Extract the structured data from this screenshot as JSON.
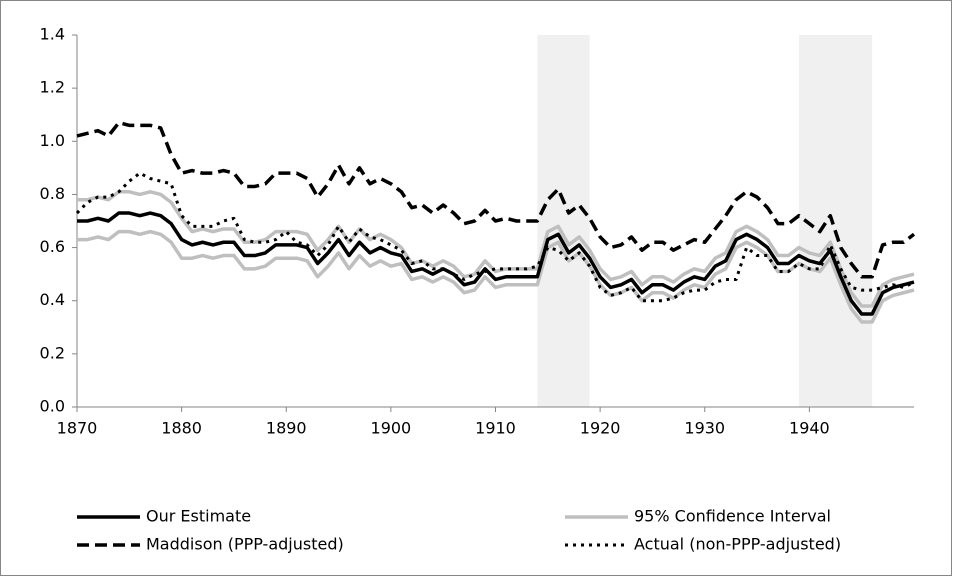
{
  "chart_data": {
    "type": "line",
    "x": [
      1870,
      1871,
      1872,
      1873,
      1874,
      1875,
      1876,
      1877,
      1878,
      1879,
      1880,
      1881,
      1882,
      1883,
      1884,
      1885,
      1886,
      1887,
      1888,
      1889,
      1890,
      1891,
      1892,
      1893,
      1894,
      1895,
      1896,
      1897,
      1898,
      1899,
      1900,
      1901,
      1902,
      1903,
      1904,
      1905,
      1906,
      1907,
      1908,
      1909,
      1910,
      1911,
      1912,
      1913,
      1914,
      1915,
      1916,
      1917,
      1918,
      1919,
      1920,
      1921,
      1922,
      1923,
      1924,
      1925,
      1926,
      1927,
      1928,
      1929,
      1930,
      1931,
      1932,
      1933,
      1934,
      1935,
      1936,
      1937,
      1938,
      1939,
      1940,
      1941,
      1942,
      1943,
      1944,
      1945,
      1946,
      1947,
      1948,
      1949,
      1950
    ],
    "series": [
      {
        "name": "95% Confidence Interval",
        "color": "#bfbfbf",
        "dash": "solid",
        "values": [
          0.78,
          0.78,
          0.79,
          0.78,
          0.81,
          0.81,
          0.8,
          0.81,
          0.8,
          0.77,
          0.71,
          0.66,
          0.67,
          0.66,
          0.67,
          0.67,
          0.62,
          0.62,
          0.63,
          0.66,
          0.66,
          0.66,
          0.65,
          0.59,
          0.63,
          0.68,
          0.62,
          0.67,
          0.63,
          0.65,
          0.63,
          0.6,
          0.54,
          0.55,
          0.53,
          0.55,
          0.53,
          0.49,
          0.5,
          0.55,
          0.51,
          0.52,
          0.52,
          0.52,
          0.52,
          0.66,
          0.68,
          0.61,
          0.64,
          0.59,
          0.52,
          0.48,
          0.49,
          0.51,
          0.46,
          0.49,
          0.49,
          0.47,
          0.5,
          0.52,
          0.51,
          0.56,
          0.58,
          0.66,
          0.68,
          0.66,
          0.63,
          0.57,
          0.57,
          0.6,
          0.58,
          0.57,
          0.62,
          0.52,
          0.43,
          0.38,
          0.38,
          0.46,
          0.48,
          0.49,
          0.5
        ],
        "lower": [
          0.63,
          0.63,
          0.64,
          0.63,
          0.66,
          0.66,
          0.65,
          0.66,
          0.65,
          0.62,
          0.56,
          0.56,
          0.57,
          0.56,
          0.57,
          0.57,
          0.52,
          0.52,
          0.53,
          0.56,
          0.56,
          0.56,
          0.55,
          0.49,
          0.53,
          0.58,
          0.52,
          0.57,
          0.53,
          0.55,
          0.53,
          0.54,
          0.48,
          0.49,
          0.47,
          0.49,
          0.47,
          0.43,
          0.44,
          0.49,
          0.45,
          0.46,
          0.46,
          0.46,
          0.46,
          0.6,
          0.62,
          0.55,
          0.58,
          0.53,
          0.46,
          0.42,
          0.43,
          0.45,
          0.4,
          0.43,
          0.43,
          0.41,
          0.44,
          0.46,
          0.45,
          0.5,
          0.52,
          0.6,
          0.62,
          0.6,
          0.57,
          0.51,
          0.51,
          0.54,
          0.52,
          0.51,
          0.56,
          0.46,
          0.37,
          0.32,
          0.32,
          0.4,
          0.42,
          0.43,
          0.44
        ]
      },
      {
        "name": "Our Estimate",
        "color": "#000000",
        "dash": "solid",
        "values": [
          0.7,
          0.7,
          0.71,
          0.7,
          0.73,
          0.73,
          0.72,
          0.73,
          0.72,
          0.69,
          0.63,
          0.61,
          0.62,
          0.61,
          0.62,
          0.62,
          0.57,
          0.57,
          0.58,
          0.61,
          0.61,
          0.61,
          0.6,
          0.54,
          0.58,
          0.63,
          0.57,
          0.62,
          0.58,
          0.6,
          0.58,
          0.57,
          0.51,
          0.52,
          0.5,
          0.52,
          0.5,
          0.46,
          0.47,
          0.52,
          0.48,
          0.49,
          0.49,
          0.49,
          0.49,
          0.63,
          0.65,
          0.58,
          0.61,
          0.56,
          0.49,
          0.45,
          0.46,
          0.48,
          0.43,
          0.46,
          0.46,
          0.44,
          0.47,
          0.49,
          0.48,
          0.53,
          0.55,
          0.63,
          0.65,
          0.63,
          0.6,
          0.54,
          0.54,
          0.57,
          0.55,
          0.54,
          0.59,
          0.49,
          0.4,
          0.35,
          0.35,
          0.43,
          0.45,
          0.46,
          0.47
        ]
      },
      {
        "name": "Maddison (PPP-adjusted)",
        "color": "#000000",
        "dash": "dashed",
        "values": [
          1.02,
          1.03,
          1.04,
          1.02,
          1.07,
          1.06,
          1.06,
          1.06,
          1.05,
          0.95,
          0.88,
          0.89,
          0.88,
          0.88,
          0.89,
          0.88,
          0.83,
          0.83,
          0.84,
          0.88,
          0.88,
          0.88,
          0.86,
          0.79,
          0.84,
          0.91,
          0.84,
          0.9,
          0.84,
          0.86,
          0.84,
          0.81,
          0.75,
          0.76,
          0.73,
          0.76,
          0.73,
          0.69,
          0.7,
          0.74,
          0.7,
          0.71,
          0.7,
          0.7,
          0.7,
          0.78,
          0.82,
          0.73,
          0.76,
          0.71,
          0.64,
          0.6,
          0.61,
          0.64,
          0.59,
          0.62,
          0.62,
          0.59,
          0.61,
          0.63,
          0.62,
          0.67,
          0.72,
          0.78,
          0.81,
          0.79,
          0.75,
          0.69,
          0.69,
          0.72,
          0.69,
          0.66,
          0.72,
          0.6,
          0.54,
          0.49,
          0.49,
          0.61,
          0.62,
          0.62,
          0.65
        ]
      },
      {
        "name": "Actual (non-PPP-adjusted)",
        "color": "#000000",
        "dash": "dotted",
        "values": [
          0.73,
          0.77,
          0.79,
          0.79,
          0.81,
          0.85,
          0.88,
          0.86,
          0.85,
          0.84,
          0.72,
          0.68,
          0.68,
          0.68,
          0.7,
          0.71,
          0.63,
          0.62,
          0.62,
          0.63,
          0.66,
          0.62,
          0.61,
          0.57,
          0.61,
          0.68,
          0.62,
          0.67,
          0.64,
          0.63,
          0.61,
          0.59,
          0.54,
          0.55,
          0.52,
          0.52,
          0.5,
          0.48,
          0.5,
          0.51,
          0.52,
          0.52,
          0.52,
          0.52,
          0.53,
          0.6,
          0.59,
          0.55,
          0.58,
          0.53,
          0.45,
          0.42,
          0.43,
          0.45,
          0.4,
          0.4,
          0.4,
          0.41,
          0.43,
          0.44,
          0.44,
          0.47,
          0.48,
          0.48,
          0.6,
          0.57,
          0.57,
          0.51,
          0.51,
          0.54,
          0.52,
          0.52,
          0.61,
          0.52,
          0.45,
          0.44,
          0.44,
          0.45,
          0.46,
          0.45,
          0.47
        ]
      }
    ],
    "shaded_periods": [
      [
        1914,
        1919
      ],
      [
        1939,
        1946
      ]
    ],
    "xlim": [
      1870,
      1950
    ],
    "xticks": [
      1870,
      1880,
      1890,
      1900,
      1910,
      1920,
      1930,
      1940
    ],
    "ylim": [
      0,
      1.4
    ],
    "yticks": [
      {
        "value": 0,
        "label": "0.0"
      },
      0.2,
      0.4,
      0.6,
      0.8,
      {
        "value": 1,
        "label": "1.0"
      },
      1.2,
      1.4
    ],
    "grid": false,
    "legend": "bottom"
  }
}
